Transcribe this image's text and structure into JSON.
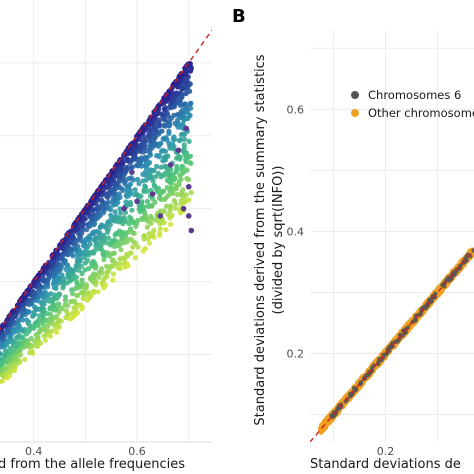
{
  "chart_data": [
    {
      "type": "scatter",
      "panel": "",
      "xlabel": "ed from the allele frequencies",
      "ylabel": "",
      "xlim": [
        0.18,
        0.745
      ],
      "ylim": [
        0.18,
        0.745
      ],
      "x_ticks": [
        {
          "value": 0.4,
          "label": "0.4"
        },
        {
          "value": 0.6,
          "label": "0.6"
        }
      ],
      "y_ticks": [],
      "grid": true,
      "identity_line": {
        "color": "#cc2222",
        "style": "dashed"
      },
      "colors": {
        "high": "#2a1f8f",
        "mid": "#2b8fb3",
        "low_mid": "#4cc27a",
        "low": "#d6e63a",
        "outlier": "#5a3b8c"
      },
      "series": [
        {
          "description": "dense band of points colored by density along and below the identity line",
          "upper_edge": [
            [
              0.18,
              0.18
            ],
            [
              0.7,
              0.7
            ]
          ],
          "lower_edge": [
            [
              0.18,
              0.16
            ],
            [
              0.4,
              0.3
            ],
            [
              0.55,
              0.4
            ],
            [
              0.7,
              0.5
            ]
          ],
          "x_end": 0.705,
          "outliers": [
            {
              "x": 0.63,
              "y": 0.52
            },
            {
              "x": 0.665,
              "y": 0.56
            },
            {
              "x": 0.69,
              "y": 0.5
            },
            {
              "x": 0.7,
              "y": 0.53
            },
            {
              "x": 0.705,
              "y": 0.47
            },
            {
              "x": 0.68,
              "y": 0.58
            },
            {
              "x": 0.59,
              "y": 0.55
            },
            {
              "x": 0.6,
              "y": 0.51
            },
            {
              "x": 0.695,
              "y": 0.61
            },
            {
              "x": 0.645,
              "y": 0.49
            },
            {
              "x": 0.575,
              "y": 0.5
            },
            {
              "x": 0.7,
              "y": 0.49
            }
          ]
        }
      ]
    },
    {
      "type": "scatter",
      "panel": "B",
      "xlabel": "Standard deviations de",
      "ylabel_line1": "Standard deviations derived from the summary statistics",
      "ylabel_line2": "(divided by sqrt(INFO))",
      "xlim": [
        0.055,
        0.37
      ],
      "ylim": [
        0.055,
        0.73
      ],
      "x_ticks": [
        {
          "value": 0.2,
          "label": "0.2"
        }
      ],
      "y_ticks": [
        {
          "value": 0.2,
          "label": "0.2"
        },
        {
          "value": 0.4,
          "label": "0.4"
        },
        {
          "value": 0.6,
          "label": "0.6"
        }
      ],
      "grid": true,
      "identity_line": {
        "color": "#cc2222",
        "style": "dashed"
      },
      "legend": {
        "position": "top-right"
      },
      "series": [
        {
          "name": "Chromosomes 6",
          "color": "#555555",
          "x_range": [
            0.095,
            0.37
          ]
        },
        {
          "name": "Other chromosomes",
          "color": "#f0a020",
          "x_range": [
            0.075,
            0.37
          ]
        }
      ]
    }
  ]
}
